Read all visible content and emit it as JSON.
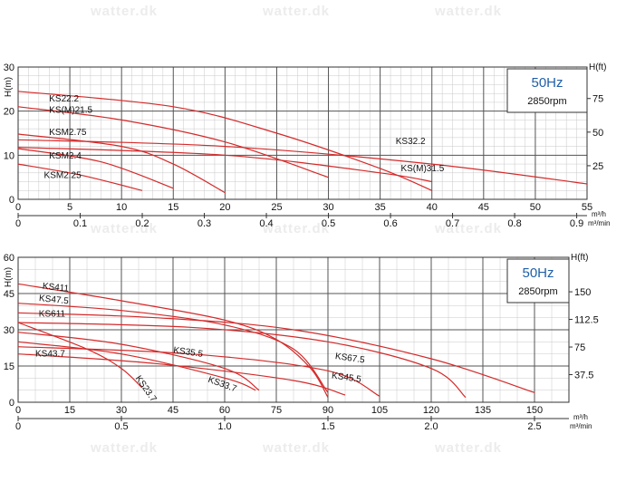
{
  "watermark": "watter.dk",
  "chart_data": [
    {
      "type": "line",
      "title": "50Hz",
      "subtitle": "2850rpm",
      "ylabel_left": "H(m)",
      "ylabel_right": "H(ft)",
      "xlabel_primary": "m³/h",
      "xlabel_secondary": "m³/min",
      "xlim": [
        0,
        55
      ],
      "ylim": [
        0,
        30
      ],
      "x_ticks": [
        "0",
        "5",
        "10",
        "15",
        "20",
        "25",
        "30",
        "35",
        "40",
        "45",
        "50",
        "55"
      ],
      "y_ticks": [
        "0",
        "10",
        "20",
        "30"
      ],
      "y_ticks_right": [
        "25",
        "50",
        "75"
      ],
      "y_ticks_right_values": [
        7.62,
        15.24,
        22.86
      ],
      "x2_ticks": [
        "0",
        "0.1",
        "0.2",
        "0.3",
        "0.4",
        "0.5",
        "0.6",
        "0.7",
        "0.8",
        "0.9"
      ],
      "x2_ticks_values": [
        0,
        6,
        12,
        18,
        24,
        30,
        36,
        42,
        48,
        54
      ],
      "grid": true,
      "legend": "top-right",
      "series": [
        {
          "name": "KS22.2",
          "x": [
            0,
            15,
            25,
            35,
            40
          ],
          "y": [
            24.5,
            21,
            15,
            7,
            2
          ]
        },
        {
          "name": "KS(M)21.5",
          "x": [
            0,
            10,
            20,
            30
          ],
          "y": [
            21,
            18,
            13,
            5
          ]
        },
        {
          "name": "KSM2.75",
          "x": [
            0,
            10,
            15,
            20
          ],
          "y": [
            14.8,
            12,
            8,
            1.5
          ]
        },
        {
          "name": "KSM2.4",
          "x": [
            0,
            8,
            15
          ],
          "y": [
            11.5,
            8.5,
            2.5
          ]
        },
        {
          "name": "KSM2.25",
          "x": [
            0,
            6,
            12
          ],
          "y": [
            8,
            5.5,
            2
          ]
        },
        {
          "name": "KS32.2",
          "x": [
            0,
            20,
            40,
            55
          ],
          "y": [
            13.5,
            12,
            8,
            3.5
          ]
        },
        {
          "name": "KS(M)31.5",
          "x": [
            0,
            20,
            35,
            40
          ],
          "y": [
            11.8,
            10,
            6,
            4
          ]
        }
      ],
      "label_positions": [
        {
          "text": "KS22.2",
          "at": [
            3,
            22.2
          ]
        },
        {
          "text": "KS(M)21.5",
          "at": [
            3,
            19.6
          ]
        },
        {
          "text": "KSM2.75",
          "at": [
            3,
            14.6
          ]
        },
        {
          "text": "KSM2.4",
          "at": [
            3,
            9.2
          ]
        },
        {
          "text": "KSM2.25",
          "at": [
            2.5,
            4.8
          ]
        },
        {
          "text": "KS32.2",
          "at": [
            36.5,
            12.5
          ]
        },
        {
          "text": "KS(M)31.5",
          "at": [
            37,
            6.4
          ]
        }
      ]
    },
    {
      "type": "line",
      "title": "50Hz",
      "subtitle": "2850rpm",
      "ylabel_left": "H(m)",
      "ylabel_right": "H(ft)",
      "xlabel_primary": "m³/h",
      "xlabel_secondary": "m³/min",
      "xlim": [
        0,
        160
      ],
      "ylim": [
        0,
        60
      ],
      "x_ticks": [
        "0",
        "15",
        "30",
        "45",
        "60",
        "75",
        "90",
        "105",
        "120",
        "135",
        "150"
      ],
      "y_ticks": [
        "0",
        "15",
        "30",
        "45",
        "60"
      ],
      "y_ticks_right": [
        "37.5",
        "75",
        "112.5",
        "150"
      ],
      "y_ticks_right_values": [
        11.43,
        22.86,
        34.29,
        45.72
      ],
      "x2_ticks": [
        "0",
        "0.5",
        "1.0",
        "1.5",
        "2.0",
        "2.5"
      ],
      "x2_ticks_values": [
        0,
        30,
        60,
        90,
        120,
        150
      ],
      "grid": true,
      "legend": "top-right",
      "series": [
        {
          "name": "KS411",
          "x": [
            0,
            30,
            60,
            75,
            85,
            90
          ],
          "y": [
            49,
            42,
            34,
            26,
            14,
            2
          ]
        },
        {
          "name": "KS47.5",
          "x": [
            0,
            30,
            60,
            80,
            90
          ],
          "y": [
            41,
            38,
            32,
            22,
            4
          ]
        },
        {
          "name": "KS611",
          "x": [
            0,
            40,
            80,
            120,
            150
          ],
          "y": [
            37,
            35,
            30,
            18,
            4
          ]
        },
        {
          "name": "KS67.5",
          "x": [
            0,
            50,
            90,
            120,
            130
          ],
          "y": [
            33,
            31,
            25,
            14,
            2
          ]
        },
        {
          "name": "KS45.5",
          "x": [
            0,
            50,
            90,
            105
          ],
          "y": [
            23,
            20,
            13,
            2.5
          ]
        },
        {
          "name": "KS35.5",
          "x": [
            0,
            30,
            60,
            70
          ],
          "y": [
            29,
            24,
            14,
            5
          ]
        },
        {
          "name": "KS33.7",
          "x": [
            0,
            30,
            60,
            69
          ],
          "y": [
            25,
            20,
            10,
            5
          ]
        },
        {
          "name": "KS43.7",
          "x": [
            0,
            40,
            80,
            95
          ],
          "y": [
            20,
            16,
            9,
            3
          ]
        },
        {
          "name": "KS23.7",
          "x": [
            0,
            20,
            30,
            36
          ],
          "y": [
            33,
            22,
            14,
            6
          ]
        }
      ],
      "label_positions": [
        {
          "text": "KS411",
          "at": [
            7,
            47
          ]
        },
        {
          "text": "KS47.5",
          "at": [
            6,
            42
          ]
        },
        {
          "text": "KS611",
          "at": [
            6,
            35.5
          ]
        },
        {
          "text": "KS67.5",
          "at": [
            92,
            18
          ]
        },
        {
          "text": "KS45.5",
          "at": [
            91,
            10
          ]
        },
        {
          "text": "KS35.5",
          "at": [
            45,
            20.5
          ]
        },
        {
          "text": "KS33.7",
          "at": [
            55,
            8.5
          ]
        },
        {
          "text": "KS43.7",
          "at": [
            5,
            19
          ]
        },
        {
          "text": "KS23.7",
          "at": [
            34,
            10
          ]
        }
      ]
    }
  ]
}
